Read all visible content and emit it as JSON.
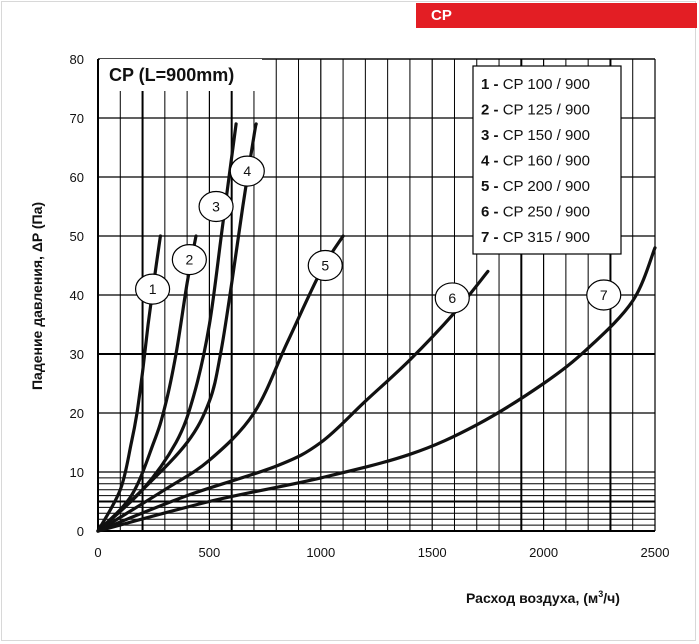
{
  "badge": "CP",
  "chart_data": {
    "type": "line",
    "title": "CP (L=900mm)",
    "xlabel": "Расход воздуха, (м³/ч)",
    "ylabel": "Падение давления, ΔP (Па)",
    "xlim": [
      0,
      2500
    ],
    "ylim": [
      0,
      80
    ],
    "xticks": [
      0,
      500,
      1000,
      1500,
      2000,
      2500
    ],
    "yticks": [
      0,
      10,
      20,
      30,
      40,
      50,
      60,
      70,
      80
    ],
    "grid": true,
    "legend_position": "top-right",
    "series": [
      {
        "name": "1 - CP 100 / 900",
        "label": "1",
        "x": [
          0,
          100,
          150,
          175,
          200,
          225,
          250,
          280
        ],
        "y": [
          0,
          7,
          15,
          20,
          27,
          35,
          42,
          50
        ]
      },
      {
        "name": "2 - CP 125 / 900",
        "label": "2",
        "x": [
          0,
          150,
          250,
          300,
          350,
          400,
          440
        ],
        "y": [
          0,
          6,
          15,
          21,
          30,
          42,
          50
        ]
      },
      {
        "name": "3 - CP 150 / 900",
        "label": "3",
        "x": [
          0,
          200,
          350,
          430,
          500,
          560,
          620
        ],
        "y": [
          0,
          7,
          15,
          23,
          35,
          52,
          69
        ]
      },
      {
        "name": "4 - CP 160 / 900",
        "label": "4",
        "x": [
          0,
          200,
          400,
          500,
          550,
          600,
          650,
          700,
          710
        ],
        "y": [
          0,
          7,
          15,
          22,
          30,
          42,
          55,
          67,
          69
        ]
      },
      {
        "name": "5 - CP 200 / 900",
        "label": "5",
        "x": [
          0,
          300,
          500,
          700,
          850,
          1000,
          1100
        ],
        "y": [
          0,
          7,
          12,
          20,
          32,
          44,
          50
        ]
      },
      {
        "name": "6 - CP 250 / 900",
        "label": "6",
        "x": [
          0,
          400,
          800,
          1000,
          1200,
          1400,
          1600,
          1750
        ],
        "y": [
          0,
          6,
          11,
          15,
          22,
          29,
          37,
          44
        ]
      },
      {
        "name": "7 - CP 315 / 900",
        "label": "7",
        "x": [
          0,
          500,
          1000,
          1400,
          1700,
          2000,
          2200,
          2400,
          2500
        ],
        "y": [
          0,
          5,
          9,
          13,
          18,
          25,
          31,
          39,
          48
        ]
      }
    ],
    "curve_label_positions": [
      {
        "label": "1",
        "x": 245,
        "y": 41
      },
      {
        "label": "2",
        "x": 410,
        "y": 46
      },
      {
        "label": "3",
        "x": 530,
        "y": 55
      },
      {
        "label": "4",
        "x": 670,
        "y": 61
      },
      {
        "label": "5",
        "x": 1020,
        "y": 45
      },
      {
        "label": "6",
        "x": 1590,
        "y": 39.5
      },
      {
        "label": "7",
        "x": 2270,
        "y": 40
      }
    ]
  },
  "colors": {
    "line": "#111111",
    "badge": "#e31e24",
    "grid": "#000000"
  }
}
